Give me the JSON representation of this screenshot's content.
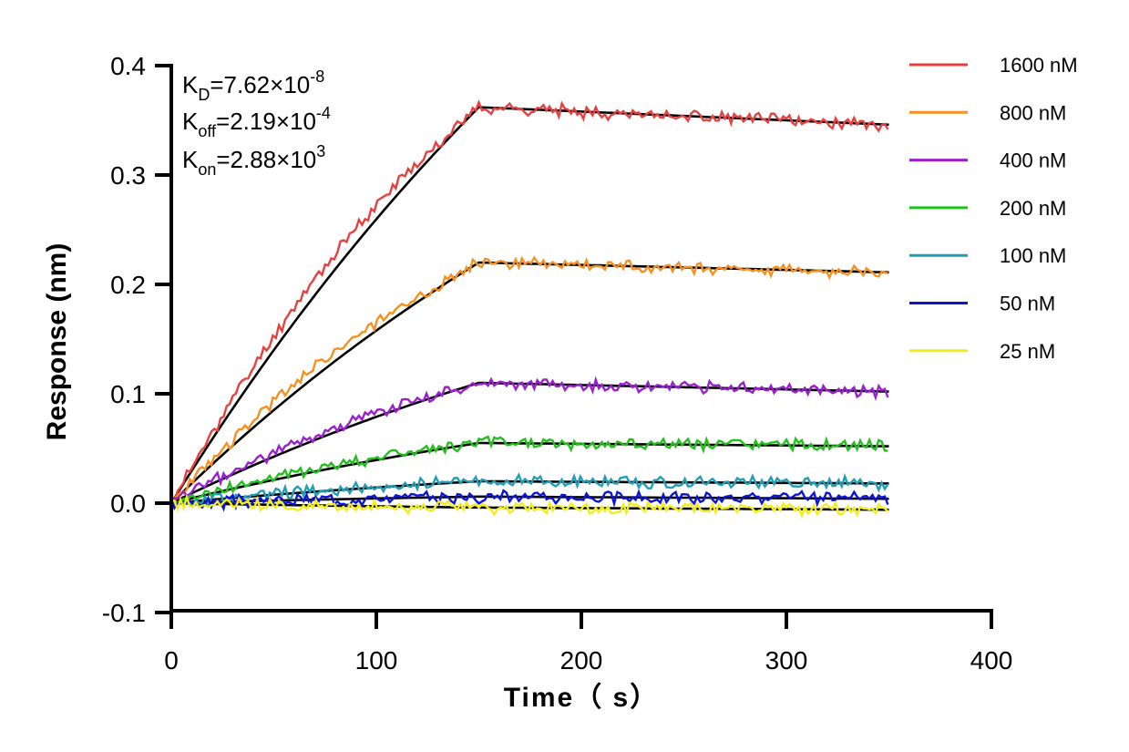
{
  "chart_data": {
    "type": "line",
    "title": "",
    "xlabel": "Time（ s）",
    "ylabel": "Response (nm)",
    "xlim": [
      0,
      400
    ],
    "ylim": [
      -0.1,
      0.4
    ],
    "xticks": [
      0,
      100,
      200,
      300,
      400
    ],
    "xtick_labels": [
      "0",
      "100",
      "200",
      "300",
      "400"
    ],
    "yticks": [
      -0.1,
      0.0,
      0.1,
      0.2,
      0.3,
      0.4
    ],
    "ytick_labels": [
      "-0.1",
      "0.0",
      "0.1",
      "0.2",
      "0.3",
      "0.4"
    ],
    "grid": false,
    "legend_position": "right",
    "association_end": 150,
    "dissociation_end": 350,
    "series": [
      {
        "name": "1600 nM",
        "color": "#e8403f",
        "plateau": 0.362,
        "end": 0.346,
        "noise": 0.0045,
        "seed": 11
      },
      {
        "name": "800 nM",
        "color": "#f7901e",
        "plateau": 0.22,
        "end": 0.211,
        "noise": 0.0045,
        "seed": 23
      },
      {
        "name": "400 nM",
        "color": "#9b1fd0",
        "plateau": 0.11,
        "end": 0.102,
        "noise": 0.0045,
        "seed": 37
      },
      {
        "name": "200 nM",
        "color": "#22c01c",
        "plateau": 0.055,
        "end": 0.052,
        "noise": 0.0045,
        "seed": 41
      },
      {
        "name": "100 nM",
        "color": "#1f9eb5",
        "plateau": 0.02,
        "end": 0.018,
        "noise": 0.0045,
        "seed": 53
      },
      {
        "name": "50 nM",
        "color": "#0c14d6",
        "plateau": 0.006,
        "end": 0.004,
        "noise": 0.0045,
        "seed": 67
      },
      {
        "name": "25 nM",
        "color": "#f2ee1c",
        "plateau": -0.004,
        "end": -0.006,
        "noise": 0.0045,
        "seed": 79
      }
    ],
    "fit_color": "#000000",
    "annotations": {
      "kd": {
        "base": "K",
        "sub": "D",
        "value": "=7.62×10",
        "exp": "-8"
      },
      "koff": {
        "base": "K",
        "sub": "off",
        "value": "=2.19×10",
        "exp": "-4"
      },
      "kon": {
        "base": "K",
        "sub": "on",
        "value": "=2.88×10",
        "exp": "3"
      }
    }
  }
}
